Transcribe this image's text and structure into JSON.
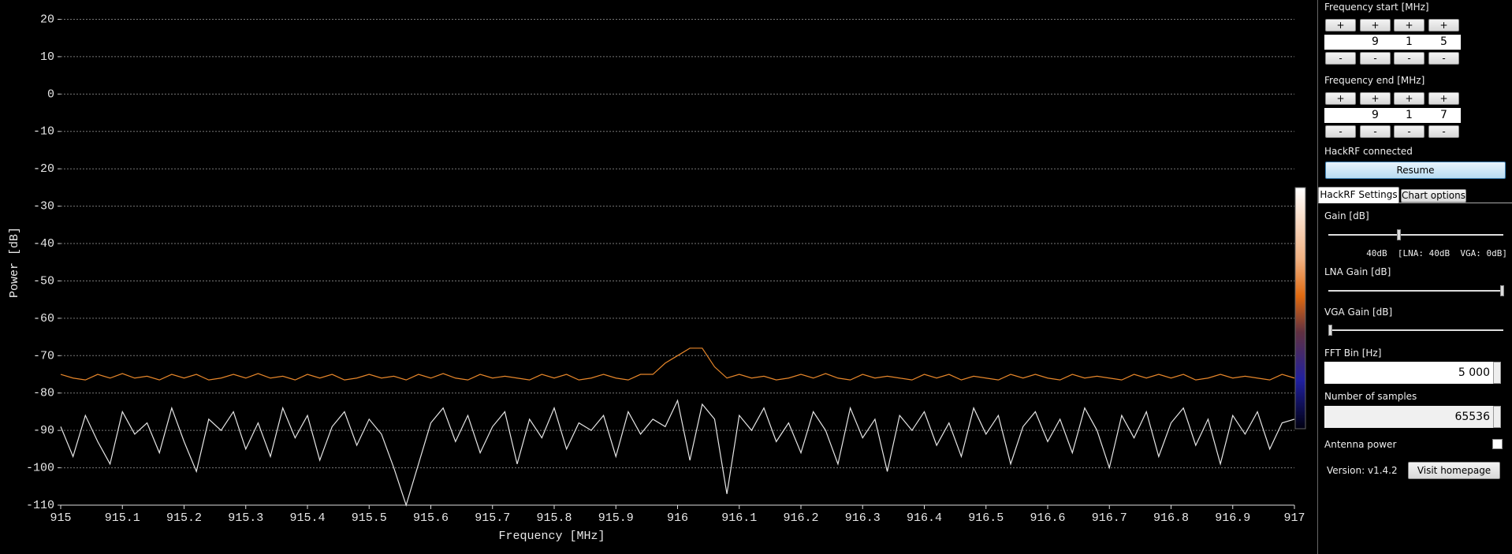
{
  "chart_data": {
    "type": "line",
    "xlabel": "Frequency [MHz]",
    "ylabel": "Power [dB]",
    "x": [
      915,
      915.02,
      915.04,
      915.06,
      915.08,
      915.1,
      915.12,
      915.14,
      915.16,
      915.18,
      915.2,
      915.22,
      915.24,
      915.26,
      915.28,
      915.3,
      915.32,
      915.34,
      915.36,
      915.38,
      915.4,
      915.42,
      915.44,
      915.46,
      915.48,
      915.5,
      915.52,
      915.54,
      915.56,
      915.58,
      915.6,
      915.62,
      915.64,
      915.66,
      915.68,
      915.7,
      915.72,
      915.74,
      915.76,
      915.78,
      915.8,
      915.82,
      915.84,
      915.86,
      915.88,
      915.9,
      915.92,
      915.94,
      915.96,
      915.98,
      916,
      916.02,
      916.04,
      916.06,
      916.08,
      916.1,
      916.12,
      916.14,
      916.16,
      916.18,
      916.2,
      916.22,
      916.24,
      916.26,
      916.28,
      916.3,
      916.32,
      916.34,
      916.36,
      916.38,
      916.4,
      916.42,
      916.44,
      916.46,
      916.48,
      916.5,
      916.52,
      916.54,
      916.56,
      916.58,
      916.6,
      916.62,
      916.64,
      916.66,
      916.68,
      916.7,
      916.72,
      916.74,
      916.76,
      916.78,
      916.8,
      916.82,
      916.84,
      916.86,
      916.88,
      916.9,
      916.92,
      916.94,
      916.96,
      916.98,
      917
    ],
    "series": [
      {
        "color": "#e8872a",
        "values": [
          -75,
          -76,
          -76.5,
          -75,
          -76,
          -74.8,
          -76,
          -75.5,
          -76.5,
          -75,
          -76,
          -75,
          -76.5,
          -76,
          -75,
          -76,
          -74.8,
          -76,
          -75.5,
          -76.5,
          -75,
          -76,
          -75,
          -76.5,
          -76,
          -75,
          -76,
          -75.5,
          -76.5,
          -75,
          -76,
          -74.8,
          -76,
          -76.5,
          -75,
          -76,
          -75.5,
          -76,
          -76.5,
          -75,
          -76,
          -75,
          -76.5,
          -76,
          -75,
          -76,
          -76.5,
          -75,
          -75,
          -72,
          -70,
          -68,
          -68,
          -73,
          -76,
          -75,
          -76,
          -75.5,
          -76.5,
          -76,
          -75,
          -76,
          -74.8,
          -76,
          -76.5,
          -75,
          -76,
          -75.5,
          -76,
          -76.5,
          -75,
          -76,
          -75,
          -76.5,
          -75.5,
          -76,
          -76.5,
          -75,
          -76,
          -75,
          -76,
          -76.5,
          -75,
          -76,
          -75.5,
          -76,
          -76.5,
          -75,
          -76,
          -75,
          -76,
          -75,
          -76.5,
          -76,
          -75,
          -76,
          -75.5,
          -76,
          -76.5,
          -75,
          -76
        ]
      },
      {
        "color": "#e6e6e6",
        "values": [
          -89,
          -97,
          -86,
          -93,
          -99,
          -85,
          -91,
          -88,
          -96,
          -84,
          -93,
          -101,
          -87,
          -90,
          -85,
          -95,
          -88,
          -97,
          -84,
          -92,
          -86,
          -98,
          -89,
          -85,
          -94,
          -87,
          -91,
          -100,
          -110,
          -99,
          -88,
          -84,
          -93,
          -86,
          -96,
          -89,
          -85,
          -99,
          -87,
          -92,
          -84,
          -95,
          -88,
          -90,
          -86,
          -97,
          -85,
          -91,
          -87,
          -89,
          -82,
          -98,
          -83,
          -87,
          -107,
          -86,
          -90,
          -84,
          -93,
          -88,
          -96,
          -85,
          -90,
          -99,
          -84,
          -92,
          -87,
          -101,
          -86,
          -90,
          -85,
          -94,
          -88,
          -97,
          -84,
          -91,
          -86,
          -99,
          -89,
          -85,
          -93,
          -87,
          -96,
          -84,
          -90,
          -100,
          -86,
          -92,
          -85,
          -97,
          -88,
          -84,
          -94,
          -87,
          -99,
          -86,
          -91,
          -85,
          -95,
          -88,
          -87
        ]
      }
    ],
    "xlim": [
      915,
      917
    ],
    "xticks": [
      915,
      915.1,
      915.2,
      915.3,
      915.4,
      915.5,
      915.6,
      915.7,
      915.8,
      915.9,
      916,
      916.1,
      916.2,
      916.3,
      916.4,
      916.5,
      916.6,
      916.7,
      916.8,
      916.9,
      917
    ],
    "ylim": [
      -110,
      20
    ],
    "yticks": [
      -110,
      -100,
      -90,
      -80,
      -70,
      -60,
      -50,
      -40,
      -30,
      -20,
      -10,
      0,
      10,
      20
    ],
    "grid": true
  },
  "panel": {
    "frequency_start": {
      "label": "Frequency start [MHz]",
      "plus": "+",
      "minus": "-",
      "digits": [
        "9",
        "1",
        "5"
      ]
    },
    "frequency_end": {
      "label": "Frequency end [MHz]",
      "plus": "+",
      "minus": "-",
      "digits": [
        "9",
        "1",
        "7"
      ]
    },
    "status": "HackRF connected",
    "resume": "Resume",
    "tabs": [
      "HackRF Settings",
      "Chart options"
    ],
    "gain_label": "Gain [dB]",
    "gain_readout": "40dB  [LNA: 40dB  VGA: 0dB]",
    "lna_label": "LNA Gain [dB]",
    "vga_label": "VGA Gain [dB]",
    "fft_label": "FFT Bin [Hz]",
    "fft_value": "5 000",
    "samples_label": "Number of samples",
    "samples_value": 65536,
    "antenna_label": "Antenna power",
    "version": "Version: v1.4.2",
    "homepage": "Visit homepage"
  }
}
